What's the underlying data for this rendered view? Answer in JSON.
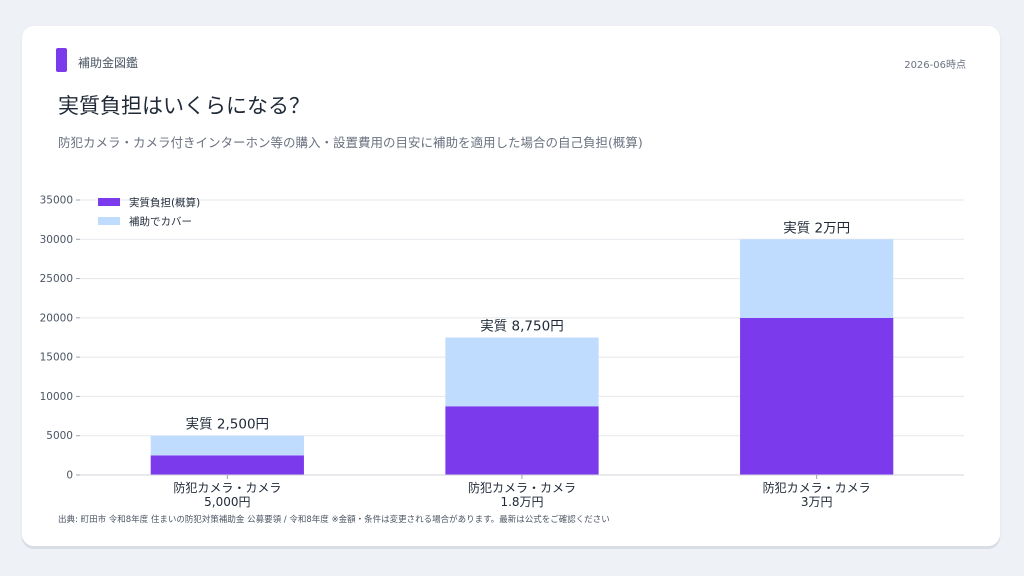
{
  "header": {
    "brand": "補助金図鑑",
    "as_of": "2026-06時点",
    "title": "実質負担はいくらになる？",
    "subtitle": "防犯カメラ・カメラ付きインターホン等の購入・設置費用の目安に補助を適用した場合の自己負担(概算)"
  },
  "footer": {
    "source": "出典: 町田市 令和8年度 住まいの防犯対策補助金 公募要領 / 令和8年度 ※金額・条件は変更される場合があります。最新は公式をご確認ください"
  },
  "colors": {
    "burden": "#7c3aed",
    "covered": "#bfdbfe",
    "accent": "#7c3aed"
  },
  "chart_data": {
    "type": "bar",
    "stacked": true,
    "categories": [
      [
        "防犯カメラ・カメラ",
        "5,000円"
      ],
      [
        "防犯カメラ・カメラ",
        "1.8万円"
      ],
      [
        "防犯カメラ・カメラ",
        "3万円"
      ]
    ],
    "series": [
      {
        "name": "実質負担(概算)",
        "values": [
          2500,
          8750,
          20000
        ],
        "color": "#7c3aed"
      },
      {
        "name": "補助でカバー",
        "values": [
          2500,
          8750,
          10000
        ],
        "color": "#bfdbfe"
      }
    ],
    "data_labels": [
      "実質 2,500円",
      "実質 8,750円",
      "実質 2万円"
    ],
    "yticks": [
      0,
      5000,
      10000,
      15000,
      20000,
      25000,
      30000,
      35000
    ],
    "ylim": [
      0,
      35000
    ],
    "grid": true,
    "legend": "top-left"
  }
}
